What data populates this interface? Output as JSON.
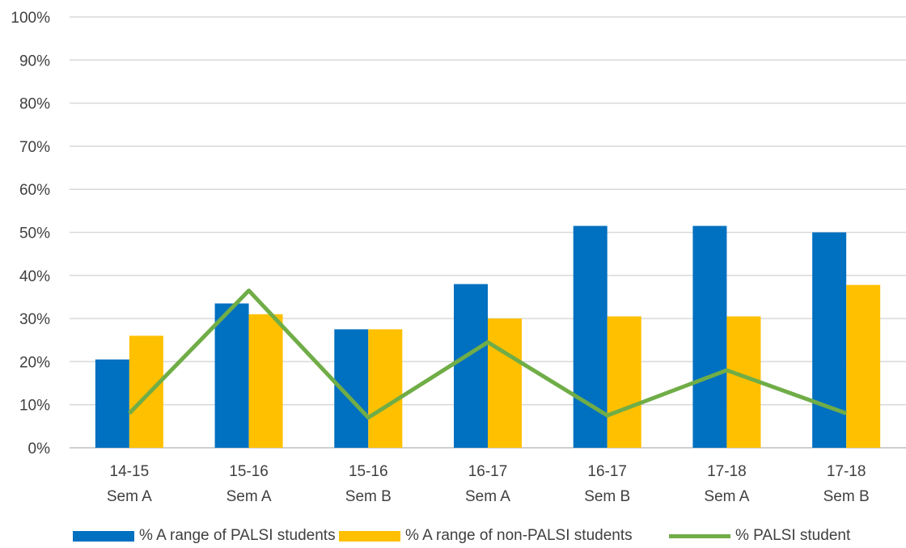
{
  "chart_data": {
    "type": "bar",
    "categories": [
      [
        "14-15",
        "Sem A"
      ],
      [
        "15-16",
        "Sem A"
      ],
      [
        "15-16",
        "Sem B"
      ],
      [
        "16-17",
        "Sem A"
      ],
      [
        "16-17",
        "Sem B"
      ],
      [
        "17-18",
        "Sem A"
      ],
      [
        "17-18",
        "Sem B"
      ]
    ],
    "y_ticks": [
      "0%",
      "10%",
      "20%",
      "30%",
      "40%",
      "50%",
      "60%",
      "70%",
      "80%",
      "90%",
      "100%"
    ],
    "ylim": [
      0,
      100
    ],
    "grid": true,
    "legend_position": "bottom",
    "series": [
      {
        "name": "% A range of PALSI students",
        "type": "bar",
        "color": "#0070C0",
        "values": [
          20.5,
          33.5,
          27.5,
          38,
          51.5,
          51.5,
          50
        ]
      },
      {
        "name": "% A range of non-PALSI students",
        "type": "bar",
        "color": "#FFC000",
        "values": [
          26,
          31,
          27.5,
          30,
          30.5,
          30.5,
          37.8
        ]
      },
      {
        "name": "% PALSI student",
        "type": "line",
        "color": "#70AD47",
        "values": [
          8,
          36.5,
          7,
          24.5,
          7.5,
          18,
          8
        ]
      }
    ]
  }
}
